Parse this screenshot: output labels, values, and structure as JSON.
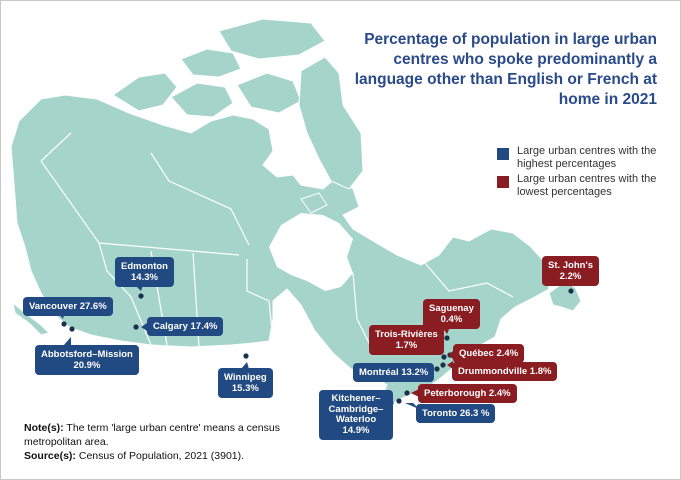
{
  "title": "Percentage of population in large urban centres who spoke predominantly a language other than English or French at home in 2021",
  "legend": [
    {
      "label": "Large urban centres with the highest percentages",
      "color": "#224a82"
    },
    {
      "label": "Large urban centres with the lowest percentages",
      "color": "#8a1d22"
    }
  ],
  "colors": {
    "land": "#a5d4cb",
    "border": "#ffffff",
    "water": "#ffffff",
    "dot": "#1b2f4d"
  },
  "cities": [
    {
      "name": "Vancouver",
      "pct": "27.6%",
      "group": "high"
    },
    {
      "name": "Abbotsford–Mission",
      "pct": "20.9%",
      "group": "high"
    },
    {
      "name": "Edmonton",
      "pct": "14.3%",
      "group": "high"
    },
    {
      "name": "Calgary",
      "pct": "17.4%",
      "group": "high"
    },
    {
      "name": "Winnipeg",
      "pct": "15.3%",
      "group": "high"
    },
    {
      "name": "Kitchener–Cambridge–Waterloo",
      "pct": "14.9%",
      "group": "high"
    },
    {
      "name": "Toronto",
      "pct": "26.3 %",
      "group": "high"
    },
    {
      "name": "Montréal",
      "pct": "13.2%",
      "group": "high"
    },
    {
      "name": "Peterborough",
      "pct": "2.4%",
      "group": "low"
    },
    {
      "name": "Drummondville",
      "pct": "1.8%",
      "group": "low"
    },
    {
      "name": "Québec",
      "pct": "2.4%",
      "group": "low"
    },
    {
      "name": "Trois-Rivières",
      "pct": "1.7%",
      "group": "low"
    },
    {
      "name": "Saguenay",
      "pct": "0.4%",
      "group": "low"
    },
    {
      "name": "St. John's",
      "pct": "2.2%",
      "group": "low"
    }
  ],
  "notes": {
    "note_label": "Note(s):",
    "note_text": "The term 'large urban centre' means a census metropolitan area.",
    "source_label": "Source(s):",
    "source_text": "Census of Population, 2021 (3901)."
  }
}
